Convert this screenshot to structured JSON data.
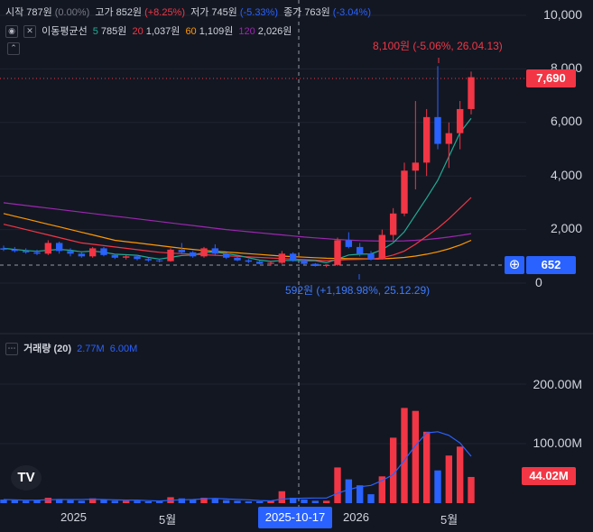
{
  "ohlc_legend": {
    "open_label": "시작",
    "open_value": "787원",
    "open_change": "(0.00%)",
    "high_label": "고가",
    "high_value": "852원",
    "high_change": "(+8.25%)",
    "low_label": "저가",
    "low_value": "745원",
    "low_change": "(-5.33%)",
    "close_label": "종가",
    "close_value": "763원",
    "close_change": "(-3.04%)"
  },
  "ma_legend": {
    "title": "이동평균선",
    "items": [
      {
        "period": "5",
        "value": "785원",
        "color": "#22ab94"
      },
      {
        "period": "20",
        "value": "1,037원",
        "color": "#f23645"
      },
      {
        "period": "60",
        "value": "1,109원",
        "color": "#ff9800"
      },
      {
        "period": "120",
        "value": "2,026원",
        "color": "#9c27b0"
      }
    ]
  },
  "volume_legend": {
    "title": "거래량 (20)",
    "values": [
      "2.77M",
      "6.00M"
    ]
  },
  "annotations": {
    "high": "8,100원 (-5.06%, 26.04.13)",
    "low": "592원 (+1,198.98%, 25.12.29)"
  },
  "price_axis": [
    "10,000",
    "8,000",
    "6,000",
    "4,000",
    "2,000",
    "0"
  ],
  "volume_axis": [
    "200.00M",
    "100.00M"
  ],
  "last_price_tag": "7,690",
  "crosshair_price_tag": "652",
  "volume_tag": "44.02M",
  "time_axis": [
    "2025",
    "5월",
    "2026",
    "5월"
  ],
  "crosshair_time": "2025-10-17",
  "colors": {
    "up": "#f23645",
    "down": "#2962ff",
    "bg": "#131722",
    "ma5": "#22ab94",
    "ma20": "#f23645",
    "ma60": "#ff9800",
    "ma120": "#9c27b0"
  },
  "chart_data": {
    "type": "candlestick",
    "price_ylim": [
      0,
      10000
    ],
    "volume_ylim_M": [
      0,
      250
    ],
    "candles": [
      [
        1300,
        1400,
        1200,
        1250
      ],
      [
        1250,
        1350,
        1150,
        1200
      ],
      [
        1200,
        1300,
        1100,
        1150
      ],
      [
        1150,
        1250,
        1050,
        1100
      ],
      [
        1100,
        1600,
        1050,
        1500
      ],
      [
        1500,
        1550,
        1100,
        1200
      ],
      [
        1200,
        1300,
        1000,
        1100
      ],
      [
        1100,
        1200,
        950,
        1000
      ],
      [
        1000,
        1350,
        950,
        1300
      ],
      [
        1300,
        1350,
        1000,
        1050
      ],
      [
        1050,
        1100,
        900,
        950
      ],
      [
        950,
        1050,
        880,
        1000
      ],
      [
        1000,
        1050,
        850,
        900
      ],
      [
        900,
        950,
        800,
        850
      ],
      [
        850,
        900,
        780,
        820
      ],
      [
        820,
        1300,
        800,
        1250
      ],
      [
        1250,
        1500,
        1100,
        1150
      ],
      [
        1150,
        1200,
        950,
        1000
      ],
      [
        1000,
        1350,
        950,
        1300
      ],
      [
        1300,
        1450,
        1050,
        1100
      ],
      [
        1100,
        1150,
        900,
        950
      ],
      [
        950,
        1000,
        820,
        850
      ],
      [
        850,
        900,
        750,
        800
      ],
      [
        800,
        850,
        700,
        720
      ],
      [
        720,
        800,
        650,
        760
      ],
      [
        760,
        1200,
        720,
        1100
      ],
      [
        1100,
        1150,
        800,
        850
      ],
      [
        850,
        900,
        700,
        720
      ],
      [
        720,
        750,
        620,
        640
      ],
      [
        640,
        700,
        592,
        680
      ],
      [
        680,
        1700,
        650,
        1600
      ],
      [
        1600,
        1900,
        1300,
        1350
      ],
      [
        1350,
        1500,
        1000,
        1100
      ],
      [
        1100,
        1200,
        850,
        900
      ],
      [
        900,
        2000,
        880,
        1800
      ],
      [
        1800,
        2800,
        1600,
        2600
      ],
      [
        2600,
        4500,
        2500,
        4200
      ],
      [
        4200,
        6800,
        3500,
        4500
      ],
      [
        4500,
        6500,
        4000,
        6200
      ],
      [
        6200,
        8100,
        5000,
        5200
      ],
      [
        5200,
        6000,
        4300,
        5600
      ],
      [
        5600,
        6800,
        5000,
        6500
      ],
      [
        6500,
        7900,
        6300,
        7690
      ]
    ],
    "volume_M": [
      6,
      5,
      4,
      5,
      9,
      7,
      5,
      4,
      8,
      6,
      4,
      4,
      4,
      3,
      3,
      10,
      8,
      6,
      9,
      7,
      5,
      4,
      3,
      3,
      4,
      20,
      9,
      6,
      4,
      4,
      60,
      40,
      30,
      15,
      45,
      110,
      160,
      155,
      120,
      55,
      80,
      95,
      44
    ],
    "ma5": [
      1300,
      1260,
      1220,
      1190,
      1230,
      1260,
      1230,
      1170,
      1200,
      1150,
      1080,
      1060,
      1040,
      960,
      900,
      960,
      1030,
      1050,
      1140,
      1160,
      1100,
      1040,
      950,
      860,
      810,
      850,
      850,
      840,
      840,
      760,
      900,
      1050,
      1080,
      1090,
      1250,
      1510,
      1920,
      2550,
      3180,
      3840,
      4720,
      5620,
      6150
    ],
    "ma20": [
      2200,
      2100,
      2000,
      1900,
      1800,
      1700,
      1600,
      1500,
      1450,
      1400,
      1350,
      1300,
      1250,
      1200,
      1150,
      1120,
      1100,
      1080,
      1060,
      1040,
      1020,
      1000,
      980,
      960,
      940,
      920,
      900,
      880,
      860,
      840,
      860,
      880,
      890,
      900,
      950,
      1050,
      1200,
      1450,
      1750,
      2050,
      2400,
      2800,
      3200
    ],
    "ma60": [
      2600,
      2500,
      2400,
      2300,
      2200,
      2100,
      2000,
      1900,
      1800,
      1700,
      1600,
      1550,
      1500,
      1450,
      1400,
      1350,
      1300,
      1260,
      1220,
      1190,
      1160,
      1130,
      1100,
      1070,
      1040,
      1010,
      990,
      970,
      950,
      930,
      920,
      915,
      910,
      905,
      910,
      930,
      960,
      1010,
      1080,
      1170,
      1280,
      1420,
      1600
    ],
    "ma120": [
      3000,
      2950,
      2900,
      2850,
      2800,
      2750,
      2700,
      2650,
      2600,
      2550,
      2500,
      2450,
      2400,
      2350,
      2300,
      2250,
      2200,
      2150,
      2100,
      2050,
      2000,
      1960,
      1920,
      1880,
      1840,
      1800,
      1760,
      1720,
      1690,
      1660,
      1630,
      1610,
      1590,
      1580,
      1570,
      1570,
      1580,
      1600,
      1630,
      1670,
      1720,
      1780,
      1850
    ]
  }
}
